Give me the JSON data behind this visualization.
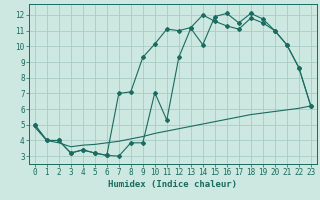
{
  "xlabel": "Humidex (Indice chaleur)",
  "bg_color": "#cce8e0",
  "grid_color": "#aaccc4",
  "line_color": "#1a6b60",
  "xlim": [
    -0.5,
    23.5
  ],
  "ylim": [
    2.5,
    12.7
  ],
  "xticks": [
    0,
    1,
    2,
    3,
    4,
    5,
    6,
    7,
    8,
    9,
    10,
    11,
    12,
    13,
    14,
    15,
    16,
    17,
    18,
    19,
    20,
    21,
    22,
    23
  ],
  "yticks": [
    3,
    4,
    5,
    6,
    7,
    8,
    9,
    10,
    11,
    12
  ],
  "line1_x": [
    0,
    1,
    2,
    3,
    4,
    5,
    6,
    7,
    8,
    9,
    10,
    11,
    12,
    13,
    14,
    15,
    16,
    17,
    18,
    19,
    20,
    21,
    22,
    23
  ],
  "line1_y": [
    5.0,
    4.0,
    4.0,
    3.2,
    3.4,
    3.2,
    3.05,
    3.0,
    3.85,
    3.85,
    7.05,
    5.3,
    9.3,
    11.15,
    10.1,
    11.9,
    12.1,
    11.5,
    12.1,
    11.75,
    11.0,
    10.1,
    8.65,
    6.2
  ],
  "line2_x": [
    0,
    1,
    2,
    3,
    4,
    5,
    6,
    7,
    8,
    9,
    10,
    11,
    12,
    13,
    14,
    15,
    16,
    17,
    18,
    19,
    20,
    21,
    22,
    23
  ],
  "line2_y": [
    5.0,
    4.0,
    4.0,
    3.2,
    3.4,
    3.2,
    3.05,
    7.0,
    7.1,
    9.3,
    10.15,
    11.1,
    11.0,
    11.2,
    12.0,
    11.6,
    11.3,
    11.1,
    11.8,
    11.5,
    11.0,
    10.1,
    8.65,
    6.2
  ],
  "line3_x": [
    0,
    1,
    2,
    3,
    4,
    5,
    6,
    7,
    8,
    9,
    10,
    11,
    12,
    13,
    14,
    15,
    16,
    17,
    18,
    19,
    20,
    21,
    22,
    23
  ],
  "line3_y": [
    4.85,
    4.0,
    3.85,
    3.6,
    3.7,
    3.75,
    3.85,
    3.95,
    4.1,
    4.25,
    4.45,
    4.6,
    4.75,
    4.9,
    5.05,
    5.2,
    5.35,
    5.5,
    5.65,
    5.75,
    5.85,
    5.95,
    6.05,
    6.2
  ]
}
